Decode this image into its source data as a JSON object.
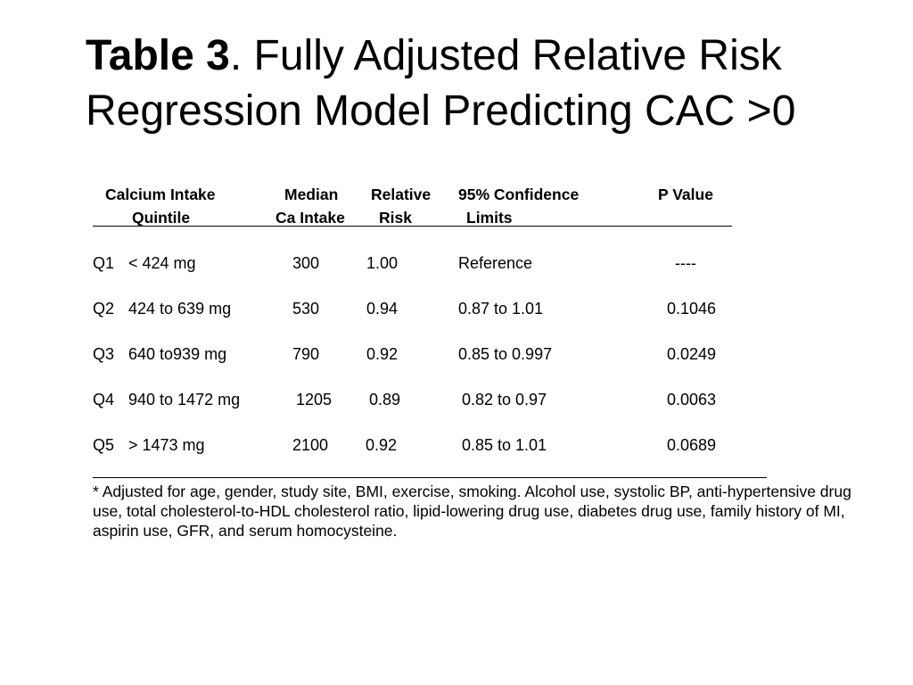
{
  "title": {
    "bold": "Table 3",
    "rest": ".  Fully Adjusted Relative Risk Regression Model Predicting CAC >0"
  },
  "headers": {
    "calcium_intake_line1": "Calcium Intake",
    "calcium_intake_line2": "Quintile",
    "median_line1": "Median",
    "median_line2": "Ca Intake",
    "relative_line1": "Relative",
    "relative_line2": "Risk",
    "ci_line1": "95% Confidence",
    "ci_line2": "Limits",
    "pvalue": "P Value"
  },
  "rows": [
    {
      "quintile": "Q1",
      "range": "< 424 mg",
      "median": "300",
      "rr": "1.00",
      "ci": "Reference",
      "p": "----"
    },
    {
      "quintile": "Q2",
      "range": "424 to 639 mg",
      "median": "530",
      "rr": "0.94",
      "ci": "0.87 to 1.01",
      "p": "0.1046"
    },
    {
      "quintile": "Q3",
      "range": "640 to939 mg",
      "median": "790",
      "rr": "0.92",
      "ci": "0.85 to 0.997",
      "p": "0.0249"
    },
    {
      "quintile": "Q4",
      "range": "940 to 1472 mg",
      "median": "1205",
      "rr": "0.89",
      "ci": "0.82 to 0.97",
      "p": "0.0063"
    },
    {
      "quintile": "Q5",
      "range": "> 1473 mg",
      "median": "2100",
      "rr": "0.92",
      "ci": "0.85 to 1.01",
      "p": "0.0689"
    }
  ],
  "footnote": "* Adjusted for age, gender, study site, BMI, exercise, smoking. Alcohol use, systolic BP, anti-hypertensive drug use, total cholesterol-to-HDL cholesterol ratio, lipid-lowering drug use, diabetes drug use, family history of MI, aspirin use, GFR, and serum homocysteine."
}
